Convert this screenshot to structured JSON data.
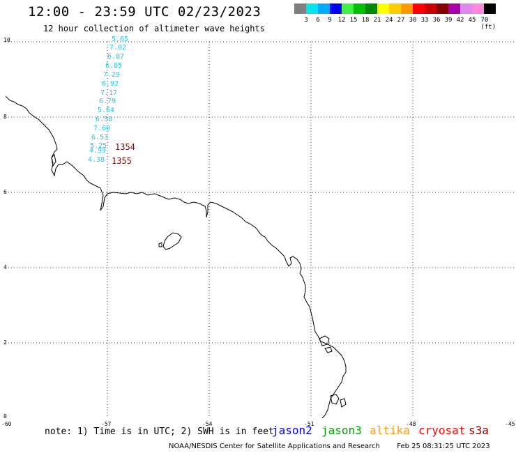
{
  "header": {
    "title": "12:00 - 23:59 UTC 02/23/2023",
    "subtitle": "12 hour collection of altimeter wave heights"
  },
  "color_scale": {
    "labels": [
      "3",
      "6",
      "9",
      "12",
      "15",
      "18",
      "21",
      "24",
      "27",
      "30",
      "33",
      "36",
      "39",
      "42",
      "45",
      "70 (ft)"
    ],
    "colors": [
      "#7f7f7f",
      "#00e5ee",
      "#00aaff",
      "#0000ff",
      "#44ee44",
      "#00c000",
      "#008800",
      "#ffff00",
      "#ffcc00",
      "#ff9900",
      "#ff0000",
      "#cc0000",
      "#880000",
      "#aa00aa",
      "#dd88ee",
      "#ff88dd",
      "#000000"
    ]
  },
  "axes": {
    "y_ticks": [
      "10",
      "8",
      "6",
      "4",
      "2",
      "0"
    ],
    "x_ticks": [
      "-60",
      "-57",
      "-54",
      "-51",
      "-48",
      "-45"
    ]
  },
  "swh_labels": [
    "5.65",
    "7.02",
    "6.87",
    "6.85",
    "7.29",
    "6.92",
    "7.17",
    "6.79",
    "5.64",
    "6.58",
    "7.60",
    "6.53",
    "5.25",
    "4.99",
    "4.38"
  ],
  "pass_labels": [
    "1354",
    "1355"
  ],
  "footer": {
    "note": "note: 1) Time is in UTC; 2) SWH is in feet",
    "satellites": [
      {
        "name": "jason2",
        "color": "#0000ff"
      },
      {
        "name": "jason3",
        "color": "#00a000"
      },
      {
        "name": "altika",
        "color": "#ff9900"
      },
      {
        "name": "cryosat",
        "color": "#ff0000"
      },
      {
        "name": "s3a",
        "color": "#880000"
      }
    ],
    "credit": "NOAA/NESDIS Center for Satellite Applications and Research",
    "timestamp": "Feb 25 08:31:25 UTC 2023"
  }
}
